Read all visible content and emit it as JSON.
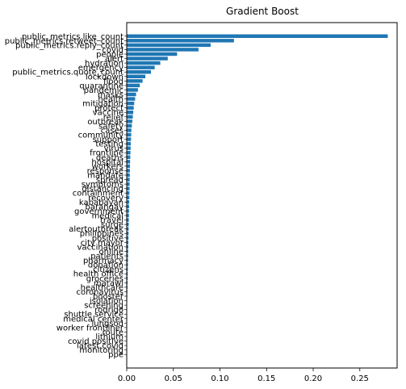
{
  "chart_data": {
    "type": "bar",
    "orientation": "horizontal",
    "title": "Gradient Boost",
    "xlabel": "",
    "ylabel": "",
    "xlim": [
      0,
      0.29
    ],
    "xticks": [
      "0.00",
      "0.05",
      "0.10",
      "0.15",
      "0.20",
      "0.25"
    ],
    "grid": false,
    "legend": "none",
    "bar_color": "#1f77b4",
    "categories": [
      "public_metrics.like_count",
      "public_metrics.retweet_count",
      "public_metrics.reply_count",
      "covid",
      "people",
      "alert",
      "hydration",
      "emergency",
      "public_metrics.quote_count",
      "lockdown",
      "flood",
      "quarantine",
      "pandemic",
      "masks",
      "health",
      "mitigation",
      "protect",
      "vaccine",
      "relief",
      "outbreak",
      "safety",
      "cases",
      "community",
      "support",
      "testing",
      "virus",
      "frontline",
      "deaths",
      "hospital",
      "workers",
      "response",
      "mandate",
      "spread",
      "symptoms",
      "distancing",
      "containment",
      "recovery",
      "kababayan",
      "barangay",
      "government",
      "medical",
      "travel",
      "surge",
      "alertoutbreak",
      "philippines",
      "positive",
      "city mayor",
      "vaccination",
      "online",
      "patients",
      "pharmacy",
      "donation",
      "citizens",
      "health office",
      "groceries",
      "marawi",
      "healthcare",
      "coronavirus",
      "booster",
      "isolation",
      "screening",
      "rodrigo",
      "shuttle service",
      "medical center",
      "lungsod",
      "worker frontliner",
      "route",
      "lithium",
      "covid positive",
      "latest covid",
      "monitoring",
      "ppe"
    ],
    "values": [
      0.28,
      0.115,
      0.09,
      0.077,
      0.054,
      0.044,
      0.036,
      0.03,
      0.026,
      0.02,
      0.017,
      0.014,
      0.012,
      0.01,
      0.009,
      0.008,
      0.0075,
      0.007,
      0.0065,
      0.006,
      0.0055,
      0.005,
      0.0048,
      0.0046,
      0.0044,
      0.0042,
      0.004,
      0.0038,
      0.0036,
      0.0035,
      0.0034,
      0.0033,
      0.0032,
      0.0031,
      0.003,
      0.0029,
      0.0028,
      0.0027,
      0.0026,
      0.0025,
      0.0024,
      0.0023,
      0.0022,
      0.0021,
      0.002,
      0.0019,
      0.0018,
      0.0017,
      0.0016,
      0.0015,
      0.0014,
      0.0013,
      0.0012,
      0.0011,
      0.001,
      0.0009,
      0.0008,
      0.0007,
      0.0006,
      0.0005,
      0.0004,
      0.0004,
      0.0003,
      0.0003,
      0.0002,
      0.0002,
      0.0002,
      0.0001,
      0.0001,
      0.0001,
      5e-05,
      5e-05
    ]
  }
}
